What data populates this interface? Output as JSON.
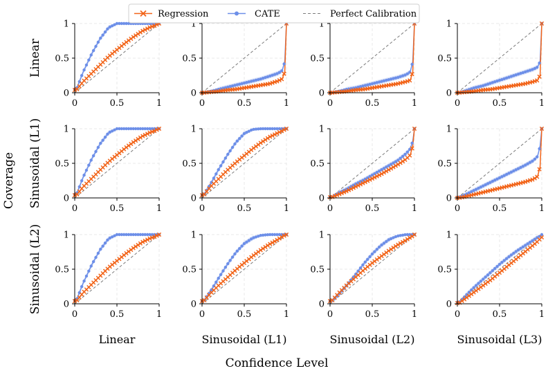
{
  "figure": {
    "ylabel": "Coverage",
    "xlabel": "Confidence Level"
  },
  "legend": {
    "items": [
      {
        "label": "Regression",
        "color": "#f26419",
        "marker": "x",
        "style": "solid"
      },
      {
        "label": "CATE",
        "color": "#6d8fe8",
        "marker": "circle",
        "style": "solid"
      },
      {
        "label": "Perfect Calibration",
        "color": "#7a7a7a",
        "marker": "none",
        "style": "dashed"
      }
    ]
  },
  "chart_data": {
    "type": "line",
    "layout": "grid-3x4",
    "row_labels": [
      "Linear",
      "Sinusoidal (L1)",
      "Sinusoidal (L2)"
    ],
    "col_labels": [
      "Linear",
      "Sinusoidal (L1)",
      "Sinusoidal (L2)",
      "Sinusoidal (L3)"
    ],
    "xlim": [
      0,
      1
    ],
    "ylim": [
      0,
      1
    ],
    "xticks": [
      "0",
      "0.5",
      "1"
    ],
    "yticks": [
      "0",
      "0.5",
      "1"
    ],
    "x": [
      0.02,
      0.1,
      0.2,
      0.3,
      0.4,
      0.5,
      0.6,
      0.7,
      0.8,
      0.9,
      0.95,
      0.98,
      1.0
    ],
    "colors": {
      "regression": "#f26419",
      "cate": "#6d8fe8",
      "reference": "#7a7a7a",
      "band": "#c9d6f5"
    },
    "panels": [
      {
        "row": 0,
        "col": 0,
        "series": [
          {
            "name": "Regression",
            "values": [
              0.04,
              0.16,
              0.28,
              0.4,
              0.52,
              0.62,
              0.72,
              0.81,
              0.89,
              0.95,
              0.97,
              0.99,
              1.0
            ]
          },
          {
            "name": "CATE",
            "values": [
              0.05,
              0.3,
              0.56,
              0.78,
              0.94,
              1.0,
              1.0,
              1.0,
              1.0,
              1.0,
              1.0,
              1.0,
              1.0
            ]
          }
        ]
      },
      {
        "row": 0,
        "col": 1,
        "series": [
          {
            "name": "Regression",
            "values": [
              0.0,
              0.01,
              0.02,
              0.04,
              0.05,
              0.07,
              0.09,
              0.11,
              0.13,
              0.17,
              0.2,
              0.3,
              1.0
            ]
          },
          {
            "name": "CATE",
            "values": [
              0.0,
              0.02,
              0.05,
              0.08,
              0.11,
              0.14,
              0.17,
              0.2,
              0.24,
              0.28,
              0.32,
              0.45,
              1.0
            ]
          }
        ]
      },
      {
        "row": 0,
        "col": 2,
        "series": [
          {
            "name": "Regression",
            "values": [
              0.0,
              0.01,
              0.02,
              0.04,
              0.05,
              0.07,
              0.09,
              0.11,
              0.13,
              0.16,
              0.18,
              0.3,
              1.0
            ]
          },
          {
            "name": "CATE",
            "values": [
              0.0,
              0.02,
              0.05,
              0.07,
              0.1,
              0.13,
              0.16,
              0.19,
              0.22,
              0.26,
              0.3,
              0.45,
              1.0
            ]
          }
        ]
      },
      {
        "row": 0,
        "col": 3,
        "series": [
          {
            "name": "Regression",
            "values": [
              0.0,
              0.01,
              0.02,
              0.04,
              0.05,
              0.07,
              0.09,
              0.11,
              0.13,
              0.16,
              0.18,
              0.25,
              1.0
            ]
          },
          {
            "name": "CATE",
            "values": [
              0.0,
              0.03,
              0.07,
              0.1,
              0.14,
              0.18,
              0.22,
              0.26,
              0.3,
              0.34,
              0.37,
              0.45,
              1.0
            ]
          }
        ]
      },
      {
        "row": 1,
        "col": 0,
        "series": [
          {
            "name": "Regression",
            "values": [
              0.04,
              0.16,
              0.28,
              0.4,
              0.52,
              0.62,
              0.72,
              0.81,
              0.89,
              0.95,
              0.97,
              0.99,
              1.0
            ]
          },
          {
            "name": "CATE",
            "values": [
              0.05,
              0.3,
              0.56,
              0.78,
              0.94,
              1.0,
              1.0,
              1.0,
              1.0,
              1.0,
              1.0,
              1.0,
              1.0
            ]
          }
        ]
      },
      {
        "row": 1,
        "col": 1,
        "series": [
          {
            "name": "Regression",
            "values": [
              0.04,
              0.16,
              0.28,
              0.4,
              0.51,
              0.61,
              0.71,
              0.8,
              0.88,
              0.94,
              0.97,
              0.99,
              1.0
            ]
          },
          {
            "name": "CATE",
            "values": [
              0.04,
              0.2,
              0.42,
              0.62,
              0.8,
              0.93,
              0.99,
              1.0,
              1.0,
              1.0,
              1.0,
              1.0,
              1.0
            ]
          }
        ]
      },
      {
        "row": 1,
        "col": 2,
        "series": [
          {
            "name": "Regression",
            "values": [
              0.01,
              0.05,
              0.1,
              0.16,
              0.22,
              0.28,
              0.34,
              0.41,
              0.48,
              0.56,
              0.62,
              0.75,
              1.0
            ]
          },
          {
            "name": "CATE",
            "values": [
              0.01,
              0.07,
              0.13,
              0.2,
              0.26,
              0.33,
              0.4,
              0.47,
              0.54,
              0.64,
              0.71,
              0.82,
              1.0
            ]
          }
        ]
      },
      {
        "row": 1,
        "col": 3,
        "series": [
          {
            "name": "Regression",
            "values": [
              0.0,
              0.02,
              0.05,
              0.08,
              0.11,
              0.14,
              0.17,
              0.2,
              0.23,
              0.27,
              0.31,
              0.45,
              1.0
            ]
          },
          {
            "name": "CATE",
            "values": [
              0.01,
              0.05,
              0.11,
              0.17,
              0.23,
              0.29,
              0.35,
              0.41,
              0.47,
              0.54,
              0.6,
              0.75,
              1.0
            ]
          }
        ]
      },
      {
        "row": 2,
        "col": 0,
        "series": [
          {
            "name": "Regression",
            "values": [
              0.04,
              0.16,
              0.28,
              0.4,
              0.52,
              0.62,
              0.72,
              0.81,
              0.89,
              0.95,
              0.97,
              0.99,
              1.0
            ]
          },
          {
            "name": "CATE",
            "values": [
              0.05,
              0.3,
              0.56,
              0.78,
              0.94,
              1.0,
              1.0,
              1.0,
              1.0,
              1.0,
              1.0,
              1.0,
              1.0
            ]
          }
        ]
      },
      {
        "row": 2,
        "col": 1,
        "series": [
          {
            "name": "Regression",
            "values": [
              0.04,
              0.15,
              0.27,
              0.38,
              0.49,
              0.59,
              0.69,
              0.78,
              0.86,
              0.93,
              0.97,
              0.99,
              1.0
            ]
          },
          {
            "name": "CATE",
            "values": [
              0.04,
              0.18,
              0.38,
              0.57,
              0.74,
              0.87,
              0.95,
              0.99,
              1.0,
              1.0,
              1.0,
              1.0,
              1.0
            ]
          }
        ]
      },
      {
        "row": 2,
        "col": 2,
        "series": [
          {
            "name": "Regression",
            "values": [
              0.04,
              0.15,
              0.27,
              0.38,
              0.49,
              0.59,
              0.68,
              0.77,
              0.85,
              0.92,
              0.96,
              0.98,
              1.0
            ]
          },
          {
            "name": "CATE",
            "values": [
              0.04,
              0.13,
              0.27,
              0.42,
              0.58,
              0.72,
              0.84,
              0.93,
              0.98,
              1.0,
              1.0,
              1.0,
              1.0
            ]
          }
        ]
      },
      {
        "row": 2,
        "col": 3,
        "series": [
          {
            "name": "Regression",
            "values": [
              0.01,
              0.08,
              0.17,
              0.26,
              0.35,
              0.45,
              0.55,
              0.65,
              0.75,
              0.85,
              0.9,
              0.94,
              0.96
            ]
          },
          {
            "name": "CATE",
            "values": [
              0.02,
              0.12,
              0.24,
              0.35,
              0.46,
              0.57,
              0.67,
              0.76,
              0.84,
              0.92,
              0.96,
              0.98,
              1.0
            ]
          }
        ]
      }
    ]
  }
}
